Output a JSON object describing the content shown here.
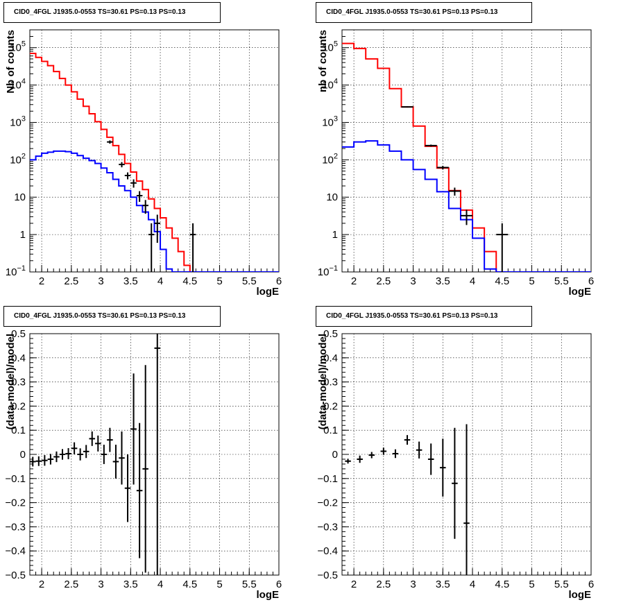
{
  "chart_data": [
    {
      "type": "line",
      "title": "CID0_4FGL J1935.0-0553 TS=30.61 PS=0.13 PS=0.13",
      "xlabel": "logE",
      "ylabel": "Nb of counts",
      "yscale": "log",
      "xlim": [
        1.8,
        6.0
      ],
      "ylim": [
        0.1,
        300000
      ],
      "grid": true,
      "x_ticks": [
        "2",
        "2.5",
        "3",
        "3.5",
        "4",
        "4.5",
        "5",
        "5.5",
        "6"
      ],
      "y_ticks": [
        "10⁻¹",
        "1",
        "10",
        "10²",
        "10³",
        "10⁴",
        "10⁵"
      ],
      "bin_edges": [
        1.8,
        1.9,
        2.0,
        2.1,
        2.2,
        2.3,
        2.4,
        2.5,
        2.6,
        2.7,
        2.8,
        2.9,
        3.0,
        3.1,
        3.2,
        3.3,
        3.4,
        3.5,
        3.6,
        3.7,
        3.8,
        3.9,
        4.0,
        4.1,
        4.2,
        4.3,
        4.4,
        4.5,
        4.6,
        4.7,
        4.8,
        4.9,
        5.0,
        5.1,
        5.2,
        5.3,
        5.4,
        5.5,
        5.6,
        5.7,
        5.8,
        5.9,
        6.0
      ],
      "series": [
        {
          "color": "#ff0000",
          "values": [
            70000,
            55000,
            43000,
            33000,
            23000,
            15000,
            10000,
            6600,
            4200,
            2700,
            1700,
            1050,
            650,
            400,
            240,
            140,
            80,
            47,
            27,
            16,
            9,
            5,
            2.8,
            1.5,
            0.8,
            0.35,
            0.15,
            0.09,
            0.09,
            0.09,
            0.09,
            0.09,
            0.09,
            0.09,
            0.09,
            0.09,
            0.09,
            0.09,
            0.09,
            0.09,
            0.09,
            0.09
          ]
        },
        {
          "color": "#0000ff",
          "values": [
            100,
            125,
            150,
            160,
            170,
            170,
            165,
            150,
            130,
            110,
            95,
            80,
            60,
            45,
            30,
            20,
            15,
            10,
            6,
            4,
            2.5,
            1.2,
            0.4,
            0.12,
            0.09,
            0.09,
            0.09,
            0.09,
            0.09,
            0.09,
            0.09,
            0.09,
            0.09,
            0.09,
            0.09,
            0.09,
            0.09,
            0.09,
            0.09,
            0.09,
            0.09,
            0.09
          ]
        }
      ],
      "points": [
        {
          "x": 3.15,
          "y": 300,
          "ylo": 270,
          "yhi": 330
        },
        {
          "x": 3.35,
          "y": 75,
          "ylo": 63,
          "yhi": 87
        },
        {
          "x": 3.45,
          "y": 38,
          "ylo": 30,
          "yhi": 46
        },
        {
          "x": 3.55,
          "y": 24,
          "ylo": 18,
          "yhi": 30
        },
        {
          "x": 3.65,
          "y": 11,
          "ylo": 7.5,
          "yhi": 14.5
        },
        {
          "x": 3.75,
          "y": 6,
          "ylo": 3.6,
          "yhi": 8.4
        },
        {
          "x": 3.85,
          "y": 1,
          "ylo": 0.05,
          "yhi": 2
        },
        {
          "x": 3.95,
          "y": 2,
          "ylo": 0.6,
          "yhi": 3.4
        },
        {
          "x": 4.55,
          "y": 1,
          "ylo": 0.05,
          "yhi": 2
        }
      ]
    },
    {
      "type": "line",
      "title": "CID0_4FGL J1935.0-0553 TS=30.61 PS=0.13 PS=0.13",
      "xlabel": "logE",
      "ylabel": "nb of counts",
      "yscale": "log",
      "xlim": [
        1.8,
        6.0
      ],
      "ylim": [
        0.1,
        300000
      ],
      "grid": true,
      "x_ticks": [
        "2",
        "2.5",
        "3",
        "3.5",
        "4",
        "4.5",
        "5",
        "5.5",
        "6"
      ],
      "y_ticks": [
        "10⁻¹",
        "1",
        "10",
        "10²",
        "10³",
        "10⁴",
        "10⁵"
      ],
      "bin_edges": [
        1.8,
        2.0,
        2.2,
        2.4,
        2.6,
        2.8,
        3.0,
        3.2,
        3.4,
        3.6,
        3.8,
        4.0,
        4.2,
        4.4,
        4.6,
        4.8,
        5.0,
        5.2,
        5.4,
        5.6,
        5.8,
        6.0
      ],
      "series": [
        {
          "color": "#ff0000",
          "values": [
            130000,
            95000,
            50000,
            28000,
            8000,
            2600,
            800,
            230,
            60,
            15,
            4.5,
            1.5,
            0.35,
            0.09,
            0.09,
            0.09,
            0.09,
            0.09,
            0.09,
            0.09,
            0.09
          ]
        },
        {
          "color": "#0000ff",
          "values": [
            220,
            300,
            320,
            250,
            170,
            100,
            55,
            30,
            14,
            5,
            2.5,
            0.8,
            0.12,
            0.09,
            0.09,
            0.09,
            0.09,
            0.09,
            0.09,
            0.09,
            0.09
          ]
        }
      ],
      "points": [
        {
          "x": 2.9,
          "y": 2600,
          "ylo": 2500,
          "yhi": 2700
        },
        {
          "x": 3.3,
          "y": 240,
          "ylo": 225,
          "yhi": 255
        },
        {
          "x": 3.5,
          "y": 62,
          "ylo": 55,
          "yhi": 69
        },
        {
          "x": 3.7,
          "y": 14.5,
          "ylo": 11,
          "yhi": 18
        },
        {
          "x": 3.9,
          "y": 3.2,
          "ylo": 1.8,
          "yhi": 4.6
        },
        {
          "x": 4.5,
          "y": 1,
          "ylo": 0.05,
          "yhi": 2
        }
      ]
    },
    {
      "type": "scatter",
      "title": "CID0_4FGL J1935.0-0553 TS=30.61 PS=0.13 PS=0.13",
      "xlabel": "logE",
      "ylabel": "(data-model)/model",
      "xlim": [
        1.8,
        6.0
      ],
      "ylim": [
        -0.5,
        0.5
      ],
      "grid": true,
      "x_ticks": [
        "2",
        "2.5",
        "3",
        "3.5",
        "4",
        "4.5",
        "5",
        "5.5",
        "6"
      ],
      "y_ticks": [
        "−0.5",
        "−0.4",
        "−0.3",
        "−0.2",
        "−0.1",
        "0",
        "0.1",
        "0.2",
        "0.3",
        "0.4",
        "0.5"
      ],
      "points": [
        {
          "x": 1.85,
          "y": -0.03,
          "err": 0.02
        },
        {
          "x": 1.95,
          "y": -0.028,
          "err": 0.02
        },
        {
          "x": 2.05,
          "y": -0.025,
          "err": 0.022
        },
        {
          "x": 2.15,
          "y": -0.02,
          "err": 0.022
        },
        {
          "x": 2.25,
          "y": -0.01,
          "err": 0.022
        },
        {
          "x": 2.35,
          "y": 0.0,
          "err": 0.022
        },
        {
          "x": 2.45,
          "y": 0.003,
          "err": 0.023
        },
        {
          "x": 2.55,
          "y": 0.025,
          "err": 0.025
        },
        {
          "x": 2.65,
          "y": 0.0,
          "err": 0.025
        },
        {
          "x": 2.75,
          "y": 0.012,
          "err": 0.027
        },
        {
          "x": 2.85,
          "y": 0.065,
          "err": 0.03
        },
        {
          "x": 2.95,
          "y": 0.045,
          "err": 0.033
        },
        {
          "x": 3.05,
          "y": 0.0,
          "err": 0.04
        },
        {
          "x": 3.15,
          "y": 0.06,
          "err": 0.05
        },
        {
          "x": 3.25,
          "y": -0.03,
          "err": 0.07
        },
        {
          "x": 3.35,
          "y": -0.015,
          "err": 0.11
        },
        {
          "x": 3.45,
          "y": -0.14,
          "err": 0.14
        },
        {
          "x": 3.55,
          "y": 0.105,
          "err": 0.23
        },
        {
          "x": 3.65,
          "y": -0.15,
          "err": 0.28
        },
        {
          "x": 3.75,
          "y": -0.06,
          "err": 0.43
        },
        {
          "x": 3.95,
          "y": 0.44,
          "err": 1.0
        }
      ]
    },
    {
      "type": "scatter",
      "title": "CID0_4FGL J1935.0-0553 TS=30.61 PS=0.13 PS=0.13",
      "xlabel": "logE",
      "ylabel": "(data-model)/model",
      "xlim": [
        1.8,
        6.0
      ],
      "ylim": [
        -0.5,
        0.5
      ],
      "grid": true,
      "x_ticks": [
        "2",
        "2.5",
        "3",
        "3.5",
        "4",
        "4.5",
        "5",
        "5.5",
        "6"
      ],
      "y_ticks": [
        "−0.5",
        "−0.4",
        "−0.3",
        "−0.2",
        "−0.1",
        "0",
        "0.1",
        "0.2",
        "0.3",
        "0.4",
        "0.5"
      ],
      "points": [
        {
          "x": 1.9,
          "y": -0.028,
          "err": 0.01
        },
        {
          "x": 2.1,
          "y": -0.02,
          "err": 0.015
        },
        {
          "x": 2.3,
          "y": -0.003,
          "err": 0.013
        },
        {
          "x": 2.5,
          "y": 0.013,
          "err": 0.015
        },
        {
          "x": 2.7,
          "y": 0.003,
          "err": 0.018
        },
        {
          "x": 2.9,
          "y": 0.06,
          "err": 0.02
        },
        {
          "x": 3.1,
          "y": 0.018,
          "err": 0.035
        },
        {
          "x": 3.3,
          "y": -0.02,
          "err": 0.065
        },
        {
          "x": 3.5,
          "y": -0.055,
          "err": 0.12
        },
        {
          "x": 3.7,
          "y": -0.12,
          "err": 0.23
        },
        {
          "x": 3.9,
          "y": -0.285,
          "err": 0.41
        }
      ]
    }
  ]
}
